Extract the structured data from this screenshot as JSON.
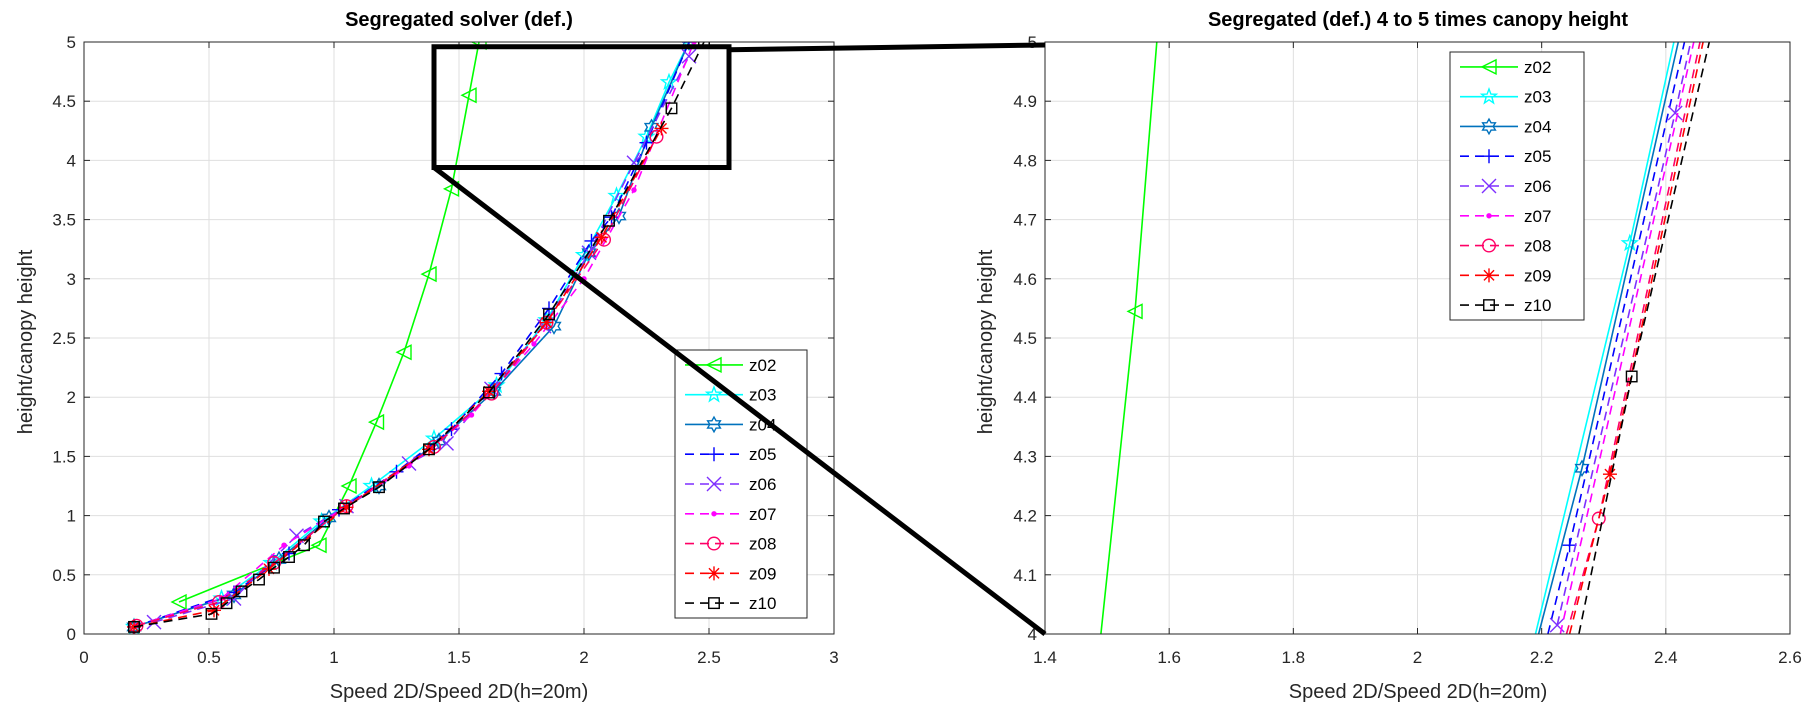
{
  "chart_data": [
    {
      "type": "line",
      "title": "Segregated solver (def.)",
      "xlabel": "Speed 2D/Speed 2D(h=20m)",
      "ylabel": "height/canopy height",
      "xlim": [
        0,
        3
      ],
      "ylim": [
        0,
        5
      ],
      "xticks": [
        "0",
        "0.5",
        "1",
        "1.5",
        "2",
        "2.5",
        "3"
      ],
      "yticks": [
        "0",
        "0.5",
        "1",
        "1.5",
        "2",
        "2.5",
        "3",
        "3.5",
        "4",
        "4.5",
        "5"
      ],
      "grid": true,
      "legend_position": "bottom-right",
      "series": [
        {
          "name": "z02",
          "color": "#00ff00",
          "marker": "triangle-left",
          "dash": "solid",
          "x": [
            0.38,
            0.94,
            1.06,
            1.17,
            1.28,
            1.38,
            1.47,
            1.54,
            1.58
          ],
          "y": [
            0.27,
            0.75,
            1.25,
            1.79,
            2.38,
            3.04,
            3.76,
            4.55,
            5.0
          ]
        },
        {
          "name": "z03",
          "color": "#00ffff",
          "marker": "pentagram",
          "dash": "solid",
          "x": [
            0.2,
            0.55,
            0.75,
            0.95,
            1.15,
            1.4,
            1.65,
            1.85,
            2.0,
            2.13,
            2.25,
            2.34,
            2.42
          ],
          "y": [
            0.06,
            0.3,
            0.6,
            0.95,
            1.25,
            1.65,
            2.1,
            2.65,
            3.2,
            3.7,
            4.2,
            4.66,
            5.0
          ]
        },
        {
          "name": "z04",
          "color": "#0072bd",
          "marker": "hexagram",
          "dash": "solid",
          "x": [
            0.2,
            0.6,
            0.78,
            0.98,
            1.18,
            1.42,
            1.64,
            1.88,
            2.02,
            2.14,
            2.27,
            2.42
          ],
          "y": [
            0.06,
            0.33,
            0.63,
            0.98,
            1.25,
            1.63,
            2.05,
            2.6,
            3.22,
            3.53,
            4.28,
            5.0
          ]
        },
        {
          "name": "z05",
          "color": "#0000ff",
          "marker": "plus",
          "dash": "dashed",
          "x": [
            0.2,
            0.6,
            0.82,
            1.02,
            1.25,
            1.47,
            1.67,
            1.86,
            2.03,
            2.11,
            2.25,
            2.42
          ],
          "y": [
            0.06,
            0.35,
            0.68,
            1.05,
            1.37,
            1.73,
            2.2,
            2.75,
            3.32,
            3.52,
            4.15,
            5.0
          ]
        },
        {
          "name": "z06",
          "color": "#7e2fff",
          "marker": "x",
          "dash": "dashed",
          "x": [
            0.28,
            0.6,
            0.85,
            1.05,
            1.3,
            1.45,
            1.63,
            1.84,
            2.02,
            2.2,
            2.42
          ],
          "y": [
            0.1,
            0.3,
            0.83,
            1.08,
            1.44,
            1.61,
            2.07,
            2.6,
            3.22,
            3.98,
            4.88
          ]
        },
        {
          "name": "z07",
          "color": "#ff00ff",
          "marker": "point",
          "dash": "dashed",
          "x": [
            0.21,
            0.55,
            0.8,
            1.03,
            1.3,
            1.55,
            1.8,
            2.0,
            2.2,
            2.44
          ],
          "y": [
            0.07,
            0.3,
            0.75,
            1.05,
            1.42,
            1.85,
            2.45,
            3.0,
            3.75,
            5.0
          ]
        },
        {
          "name": "z08",
          "color": "#ff0066",
          "marker": "circle",
          "dash": "dashed",
          "x": [
            0.21,
            0.54,
            0.76,
            1.05,
            1.4,
            1.63,
            1.85,
            2.08,
            2.29
          ],
          "y": [
            0.07,
            0.27,
            0.6,
            1.08,
            1.58,
            2.03,
            2.63,
            3.33,
            4.2
          ]
        },
        {
          "name": "z09",
          "color": "#ff0000",
          "marker": "asterisk",
          "dash": "dashed",
          "x": [
            0.2,
            0.52,
            0.74,
            1.05,
            1.38,
            1.62,
            1.85,
            2.07,
            2.31
          ],
          "y": [
            0.06,
            0.2,
            0.55,
            1.07,
            1.56,
            2.05,
            2.63,
            3.35,
            4.27
          ]
        },
        {
          "name": "z10",
          "color": "#000000",
          "marker": "square",
          "dash": "dashed",
          "x": [
            0.2,
            0.51,
            0.57,
            0.63,
            0.7,
            0.76,
            0.82,
            0.88,
            0.96,
            1.04,
            1.18,
            1.38,
            1.62,
            1.86,
            2.1,
            2.35,
            2.48
          ],
          "y": [
            0.06,
            0.17,
            0.26,
            0.36,
            0.46,
            0.56,
            0.65,
            0.75,
            0.95,
            1.06,
            1.24,
            1.56,
            2.04,
            2.7,
            3.49,
            4.44,
            5.0
          ]
        }
      ]
    },
    {
      "type": "line",
      "title": "Segregated (def.) 4 to 5 times canopy height",
      "xlabel": "Speed 2D/Speed 2D(h=20m)",
      "ylabel": "height/canopy height",
      "xlim": [
        1.4,
        2.6
      ],
      "ylim": [
        4,
        5
      ],
      "xticks": [
        "1.4",
        "1.6",
        "1.8",
        "2",
        "2.2",
        "2.4",
        "2.6"
      ],
      "yticks": [
        "4",
        "4.1",
        "4.2",
        "4.3",
        "4.4",
        "4.5",
        "4.6",
        "4.7",
        "4.8",
        "4.9",
        "5"
      ],
      "grid": true,
      "legend_position": "top-center",
      "series": [
        {
          "name": "z02",
          "color": "#00ff00",
          "marker": "triangle-left",
          "dash": "solid",
          "x": [
            1.49,
            1.545,
            1.58
          ],
          "y": [
            4.0,
            4.545,
            5.0
          ],
          "mx": [
            1.545
          ],
          "my": [
            4.545
          ]
        },
        {
          "name": "z03",
          "color": "#00ffff",
          "marker": "pentagram",
          "dash": "solid",
          "x": [
            2.19,
            2.342,
            2.413
          ],
          "y": [
            4.0,
            4.66,
            5.0
          ],
          "mx": [
            2.342
          ],
          "my": [
            4.66
          ]
        },
        {
          "name": "z04",
          "color": "#0072bd",
          "marker": "hexagram",
          "dash": "solid",
          "x": [
            2.195,
            2.265,
            2.42
          ],
          "y": [
            4.0,
            4.28,
            5.0
          ],
          "mx": [
            2.265
          ],
          "my": [
            4.28
          ]
        },
        {
          "name": "z05",
          "color": "#0000ff",
          "marker": "plus",
          "dash": "dashed",
          "x": [
            2.21,
            2.245,
            2.43
          ],
          "y": [
            4.0,
            4.15,
            5.0
          ],
          "mx": [
            2.245
          ],
          "my": [
            4.15
          ]
        },
        {
          "name": "z06",
          "color": "#7e2fff",
          "marker": "x",
          "dash": "dashed",
          "x": [
            2.225,
            2.415,
            2.44
          ],
          "y": [
            4.015,
            4.88,
            5.0
          ],
          "mx": [
            2.225,
            2.415
          ],
          "my": [
            4.015,
            4.88
          ]
        },
        {
          "name": "z07",
          "color": "#ff00ff",
          "marker": "point",
          "dash": "dashed",
          "x": [
            2.23,
            2.445
          ],
          "y": [
            4.0,
            5.0
          ],
          "mx": [],
          "my": []
        },
        {
          "name": "z08",
          "color": "#ff0066",
          "marker": "circle",
          "dash": "dashed",
          "x": [
            2.24,
            2.292,
            2.455
          ],
          "y": [
            4.0,
            4.195,
            5.0
          ],
          "mx": [
            2.292
          ],
          "my": [
            4.195
          ]
        },
        {
          "name": "z09",
          "color": "#ff0000",
          "marker": "asterisk",
          "dash": "dashed",
          "x": [
            2.245,
            2.31,
            2.46
          ],
          "y": [
            4.0,
            4.27,
            5.0
          ],
          "mx": [
            2.31
          ],
          "my": [
            4.27
          ]
        },
        {
          "name": "z10",
          "color": "#000000",
          "marker": "square",
          "dash": "dashed",
          "x": [
            2.26,
            2.345,
            2.47
          ],
          "y": [
            4.0,
            4.435,
            5.0
          ],
          "mx": [
            2.345
          ],
          "my": [
            4.435
          ]
        }
      ]
    }
  ],
  "zoom_region": {
    "x": [
      1.4,
      2.58
    ],
    "y": [
      3.94,
      4.96
    ]
  }
}
